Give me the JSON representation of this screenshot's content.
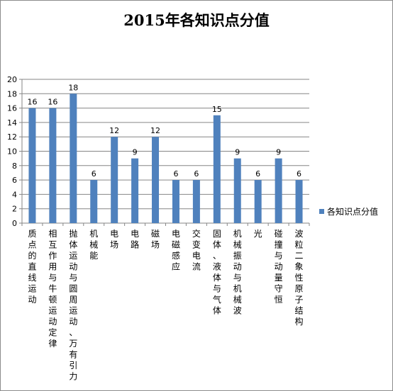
{
  "chart_data": {
    "type": "bar",
    "title": "2015年各知识点分值",
    "categories": [
      "质点的直线运动",
      "相互作用与牛顿运动定律",
      "抛体运动与圆周运动、万有引力",
      "机械能",
      "电场",
      "电路",
      "磁场",
      "电磁感应",
      "交变电流",
      "固体、液体与气体",
      "机械振动与机械波",
      "光",
      "碰撞与动量守恒",
      "波粒二象性原子结构"
    ],
    "series": [
      {
        "name": "各知识点分值",
        "values": [
          16,
          16,
          18,
          6,
          12,
          9,
          12,
          6,
          6,
          15,
          9,
          6,
          9,
          6
        ]
      }
    ],
    "ylim": [
      0,
      20
    ],
    "yticks": [
      0,
      2,
      4,
      6,
      8,
      10,
      12,
      14,
      16,
      18,
      20
    ],
    "grid": true,
    "legend": "right",
    "bar_color": "#4f81bd"
  }
}
